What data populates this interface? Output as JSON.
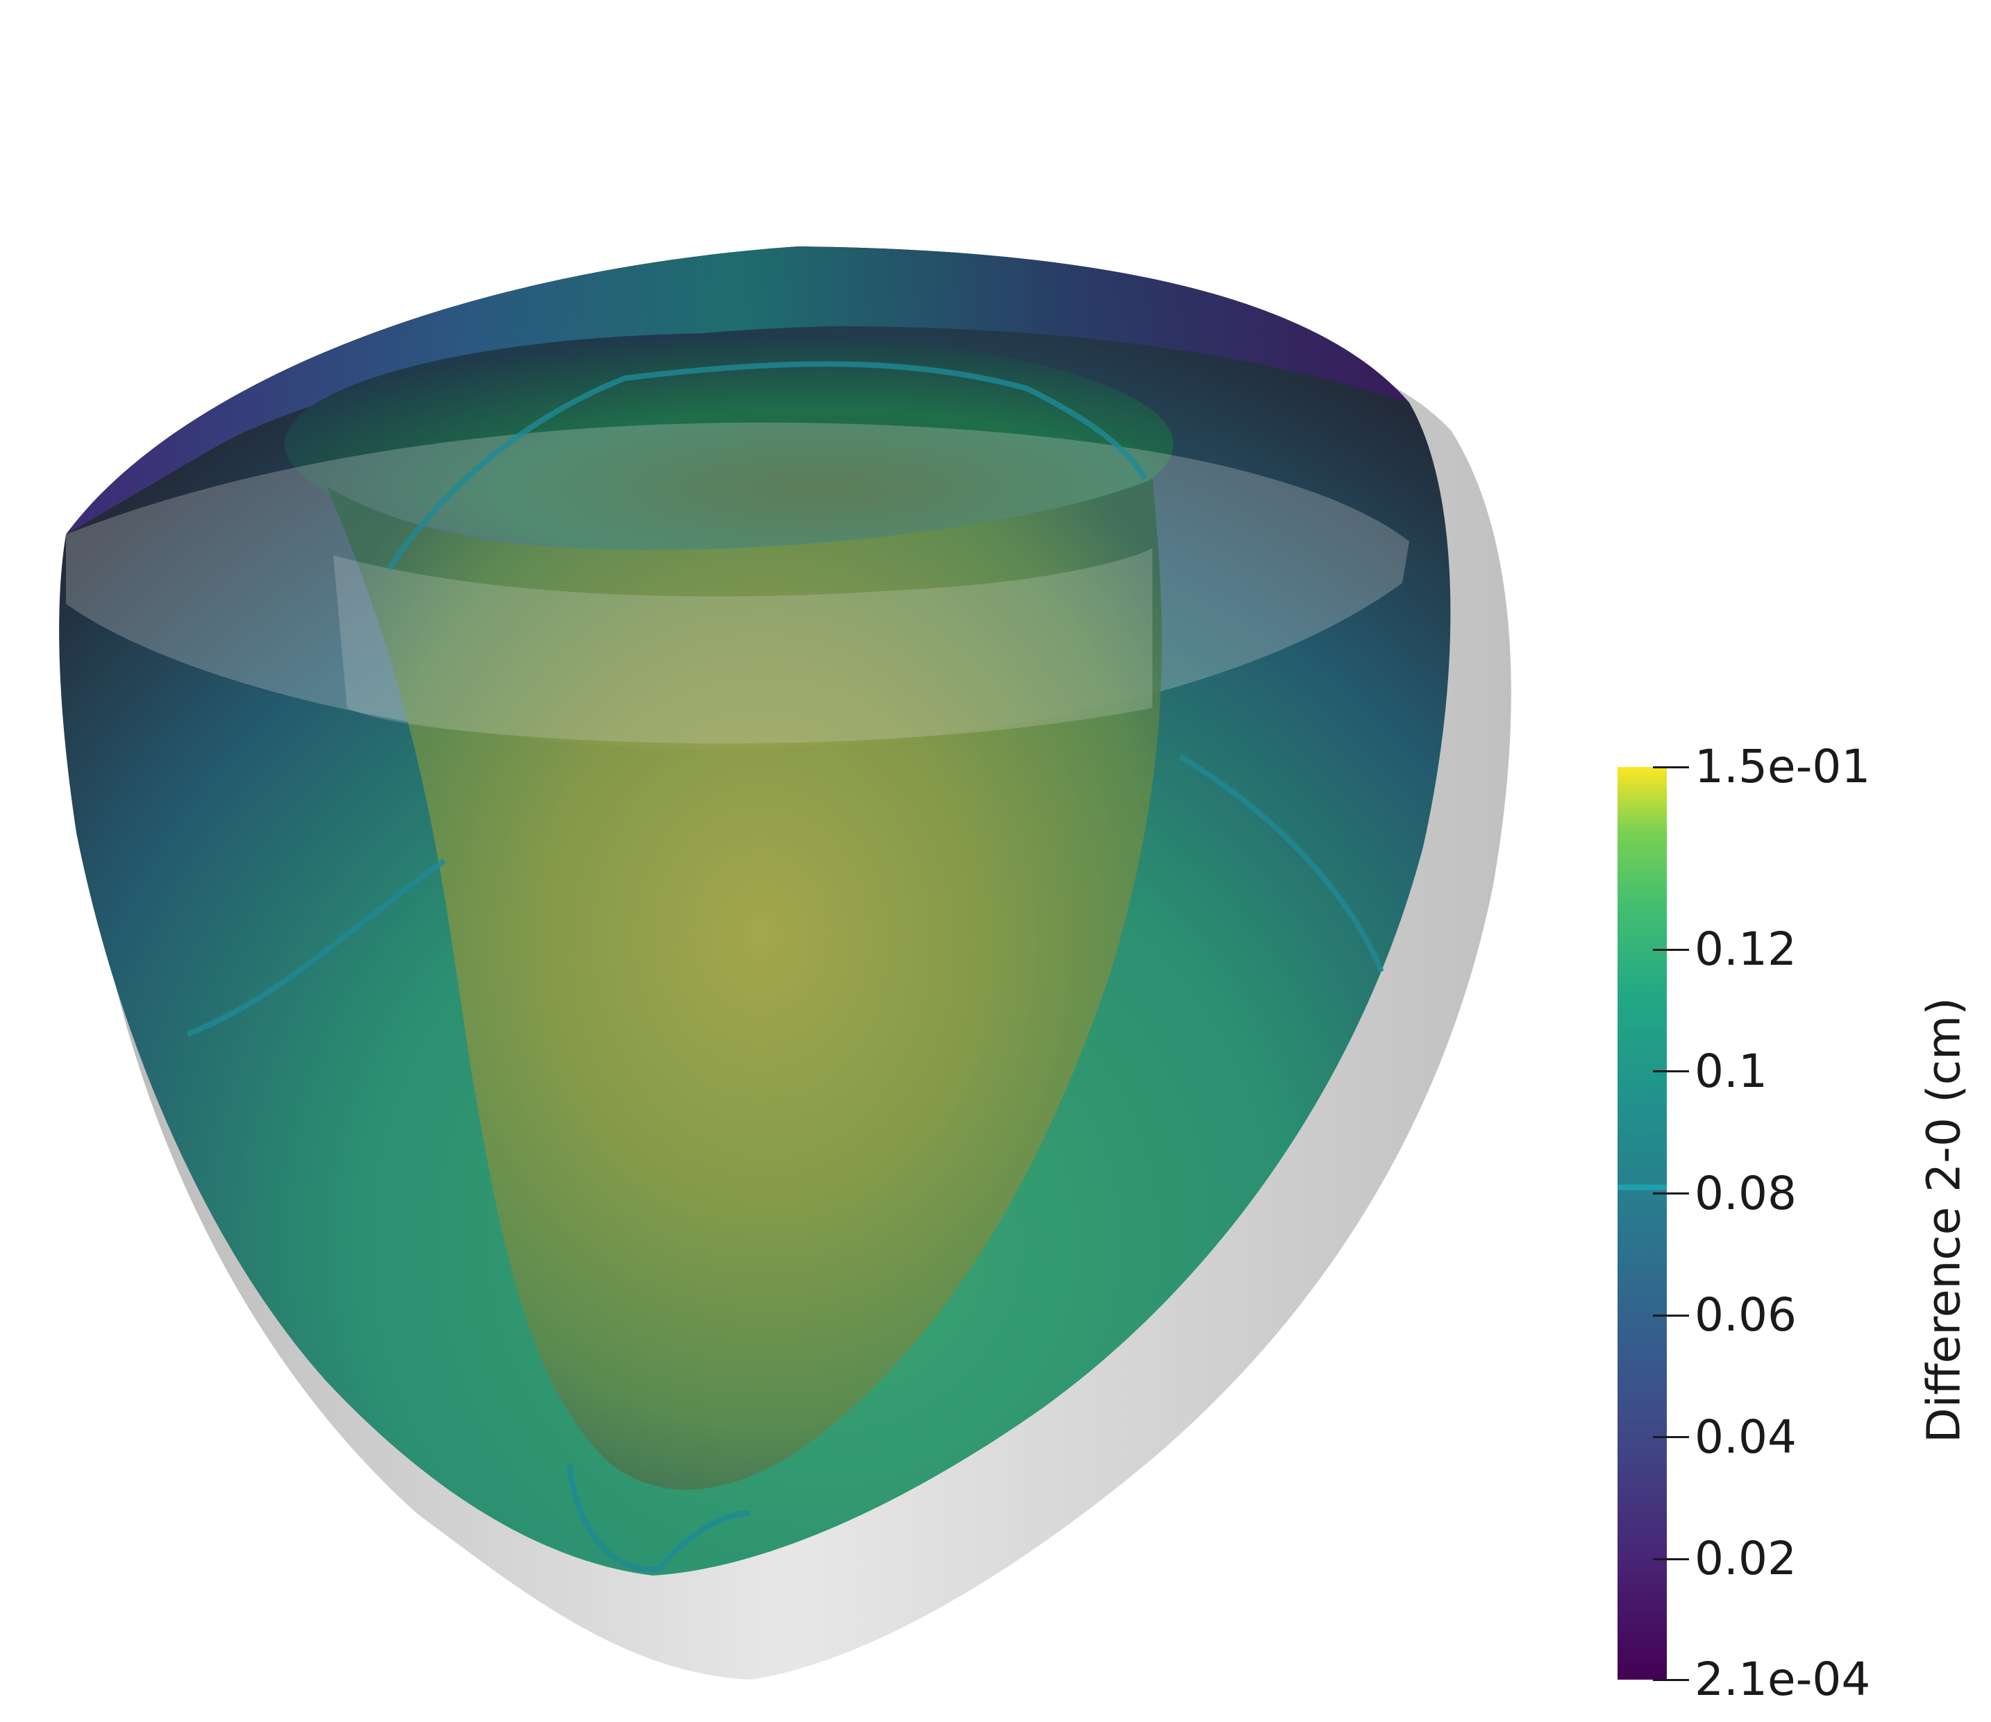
{
  "scalar_bar": {
    "title": "Difference 2-0 (cm)",
    "colormap": "viridis",
    "range": [
      0.00021,
      0.15
    ],
    "ticks": [
      {
        "value": 0.15,
        "label": "1.5e-01"
      },
      {
        "value": 0.12,
        "label": "0.12"
      },
      {
        "value": 0.1,
        "label": "0.1"
      },
      {
        "value": 0.08,
        "label": "0.08"
      },
      {
        "value": 0.06,
        "label": "0.06"
      },
      {
        "value": 0.04,
        "label": "0.04"
      },
      {
        "value": 0.02,
        "label": "0.02"
      },
      {
        "value": 0.00021,
        "label": "2.1e-04"
      }
    ],
    "highlight_value": 0.081,
    "colors": {
      "min": "#440154",
      "low": "#3b528b",
      "mid": "#21918c",
      "high": "#5ec962",
      "max": "#fde725"
    }
  },
  "scene": {
    "background": "#ffffff",
    "reference_surface_color": "#c8c8c8"
  }
}
